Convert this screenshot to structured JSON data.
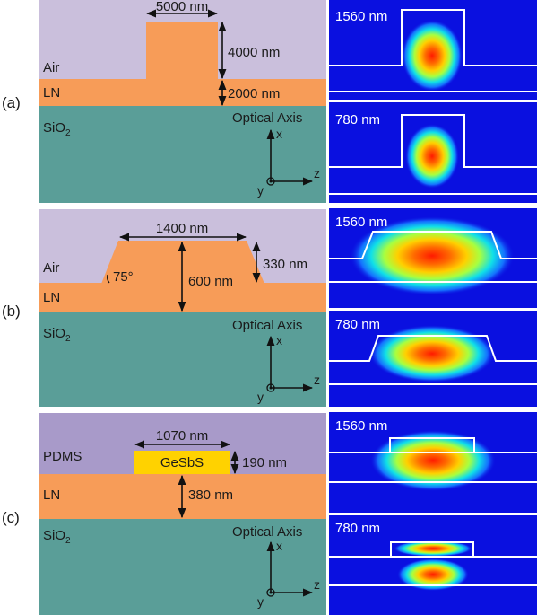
{
  "colors": {
    "air": "#cabfdc",
    "pdms": "#a89ac9",
    "ln": "#f79c58",
    "sio2": "#5a9e98",
    "gesbs": "#ffd200",
    "mode_bg": "#0a10e0"
  },
  "panel_a": {
    "label": "(a)",
    "air_label": "Air",
    "ln_label": "LN",
    "sio2_label": "SiO",
    "sio2_sub": "2",
    "width_label": "5000 nm",
    "ridge_height_label": "4000 nm",
    "slab_height_label": "2000 nm",
    "optical_axis": "Optical Axis",
    "ax_x": "x",
    "ax_y": "y",
    "ax_z": "z",
    "mode_top": "1560 nm",
    "mode_bottom": "780 nm"
  },
  "panel_b": {
    "label": "(b)",
    "air_label": "Air",
    "ln_label": "LN",
    "sio2_label": "SiO",
    "sio2_sub": "2",
    "width_label": "1400 nm",
    "angle_label": "75°",
    "total_height_label": "600 nm",
    "ridge_height_label": "330 nm",
    "optical_axis": "Optical Axis",
    "ax_x": "x",
    "ax_y": "y",
    "ax_z": "z",
    "mode_top": "1560 nm",
    "mode_bottom": "780 nm"
  },
  "panel_c": {
    "label": "(c)",
    "pdms_label": "PDMS",
    "ln_label": "LN",
    "sio2_label": "SiO",
    "sio2_sub": "2",
    "strip_label": "GeSbS",
    "width_label": "1070 nm",
    "strip_height_label": "190 nm",
    "ln_height_label": "380 nm",
    "optical_axis": "Optical Axis",
    "ax_x": "x",
    "ax_y": "y",
    "ax_z": "z",
    "mode_top": "1560 nm",
    "mode_bottom": "780 nm"
  }
}
